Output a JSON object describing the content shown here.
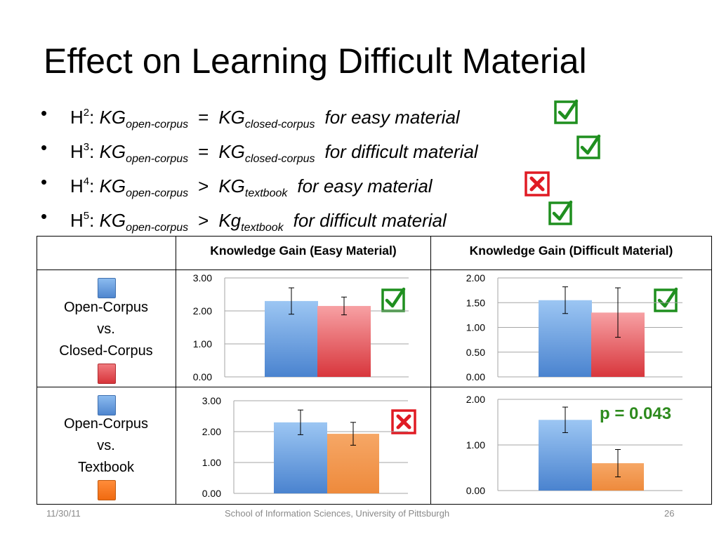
{
  "slide": {
    "title": "Effect on Learning Difficult Material",
    "footer": {
      "date": "11/30/11",
      "center": "School of Information Sciences, University of Pittsburgh",
      "page": "26"
    }
  },
  "bullets": [
    {
      "bullet": "•",
      "h": "H",
      "sup": "2",
      "colon": ":",
      "kg1": "KG",
      "sub1": "open-corpus",
      "op": "=",
      "kg2": "KG",
      "sub2": "closed-corpus",
      "desc": "for easy material",
      "mark": "check"
    },
    {
      "bullet": "•",
      "h": "H",
      "sup": "3",
      "colon": ":",
      "kg1": "KG",
      "sub1": "open-corpus",
      "op": "=",
      "kg2": "KG",
      "sub2": "closed-corpus",
      "desc": "for difficult material",
      "mark": "check"
    },
    {
      "bullet": "•",
      "h": "H",
      "sup": "4",
      "colon": ":",
      "kg1": "KG",
      "sub1": "open-corpus",
      "op": ">",
      "kg2": "KG",
      "sub2": "textbook",
      "desc": "for easy material",
      "mark": "cross"
    },
    {
      "bullet": "•",
      "h": "H",
      "sup": "5",
      "colon": ":",
      "kg1": "KG",
      "sub1": "open-corpus",
      "op": ">",
      "kg2": "Kg",
      "sub2": "textbook",
      "desc": "for difficult material",
      "mark": "check"
    }
  ],
  "table": {
    "col_headers": [
      "Knowledge Gain (Easy Material)",
      "Knowledge Gain (Difficult Material)"
    ],
    "rows": [
      {
        "label_lines": [
          "Open-Corpus",
          "vs.",
          "Closed-Corpus"
        ]
      },
      {
        "label_lines": [
          "Open-Corpus",
          "vs.",
          "Textbook"
        ]
      }
    ],
    "p_value": "p = 0.043"
  },
  "colors": {
    "open_corpus": "#5b9bd5",
    "closed_corpus": "#e0444a",
    "textbook": "#f39c4a",
    "check": "#1f8f1f",
    "cross": "#e01b24"
  },
  "chart_data": [
    {
      "type": "bar",
      "id": "easy-oc-vs-cc",
      "categories": [
        "Open-Corpus",
        "Closed-Corpus"
      ],
      "values": [
        2.3,
        2.15
      ],
      "error": [
        0.4,
        0.27
      ],
      "ylim": [
        0,
        3
      ],
      "yticks": [
        "0.00",
        "1.00",
        "2.00",
        "3.00"
      ],
      "ytick_values": [
        0,
        1,
        2,
        3
      ],
      "grid": true,
      "mark": "check"
    },
    {
      "type": "bar",
      "id": "difficult-oc-vs-cc",
      "categories": [
        "Open-Corpus",
        "Closed-Corpus"
      ],
      "values": [
        1.55,
        1.3
      ],
      "error": [
        0.27,
        0.5
      ],
      "ylim": [
        0,
        2
      ],
      "yticks": [
        "0.00",
        "0.50",
        "1.00",
        "1.50",
        "2.00"
      ],
      "ytick_values": [
        0,
        0.5,
        1,
        1.5,
        2
      ],
      "grid": true,
      "mark": "check"
    },
    {
      "type": "bar",
      "id": "easy-oc-vs-tb",
      "categories": [
        "Open-Corpus",
        "Textbook"
      ],
      "values": [
        2.3,
        1.93
      ],
      "error": [
        0.4,
        0.37
      ],
      "ylim": [
        0,
        3
      ],
      "yticks": [
        "0.00",
        "1.00",
        "2.00",
        "3.00"
      ],
      "ytick_values": [
        0,
        1,
        2,
        3
      ],
      "grid": true,
      "mark": "cross"
    },
    {
      "type": "bar",
      "id": "difficult-oc-vs-tb",
      "categories": [
        "Open-Corpus",
        "Textbook"
      ],
      "values": [
        1.55,
        0.6
      ],
      "error": [
        0.28,
        0.3
      ],
      "ylim": [
        0,
        2
      ],
      "yticks": [
        "0.00",
        "1.00",
        "2.00"
      ],
      "ytick_values": [
        0,
        1,
        2
      ],
      "grid": true,
      "annotation": "p = 0.043"
    }
  ]
}
